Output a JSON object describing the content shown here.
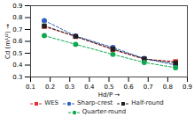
{
  "chart_data": {
    "type": "line",
    "xlabel": "Hd/P",
    "ylabel": "Cd (m¹/²)",
    "xlim": [
      0.1,
      0.9
    ],
    "ylim": [
      0.3,
      0.9
    ],
    "xticks": [
      0.1,
      0.2,
      0.3,
      0.4,
      0.5,
      0.6,
      0.7,
      0.8,
      0.9
    ],
    "yticks": [
      0.3,
      0.4,
      0.5,
      0.6,
      0.7,
      0.8,
      0.9
    ],
    "grid": false,
    "legend": "bottom",
    "line_style": "dashed",
    "x": [
      0.17,
      0.33,
      0.52,
      0.68,
      0.84
    ],
    "series": [
      {
        "name": "WES",
        "color": "#e83030",
        "marker": "square",
        "values": [
          0.725,
          0.64,
          0.53,
          0.45,
          0.43
        ]
      },
      {
        "name": "Sharp-crest",
        "color": "#3060c0",
        "marker": "circle",
        "values": [
          0.775,
          0.645,
          0.548,
          0.455,
          0.4
        ]
      },
      {
        "name": "Half-round",
        "color": "#202020",
        "marker": "square",
        "values": [
          0.73,
          0.642,
          0.535,
          0.452,
          0.418
        ]
      },
      {
        "name": "Quarter-round",
        "color": "#10a850",
        "marker": "circle",
        "values": [
          0.648,
          0.575,
          0.49,
          0.422,
          0.378
        ]
      }
    ]
  }
}
